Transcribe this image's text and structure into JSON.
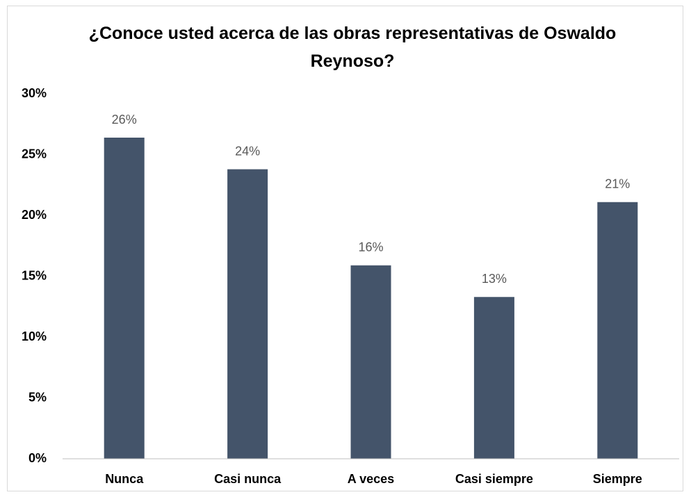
{
  "chart_data": {
    "type": "bar",
    "title": "¿Conoce usted acerca de las obras representativas de Oswaldo Reynoso?",
    "categories": [
      "Nunca",
      "Casi nunca",
      "A veces",
      "Casi siempre",
      "Siempre"
    ],
    "values": [
      26.4,
      23.8,
      15.9,
      13.3,
      21.1
    ],
    "value_labels": [
      "26%",
      "24%",
      "16%",
      "13%",
      "21%"
    ],
    "color": "#44546a",
    "ylim": [
      0,
      30
    ],
    "yticks": [
      {
        "value": 0,
        "label": "0%"
      },
      {
        "value": 5,
        "label": "5%"
      },
      {
        "value": 10,
        "label": "10%"
      },
      {
        "value": 15,
        "label": "15%"
      },
      {
        "value": 20,
        "label": "20%"
      },
      {
        "value": 25,
        "label": "25%"
      },
      {
        "value": 30,
        "label": "30%"
      }
    ],
    "grid": false
  }
}
